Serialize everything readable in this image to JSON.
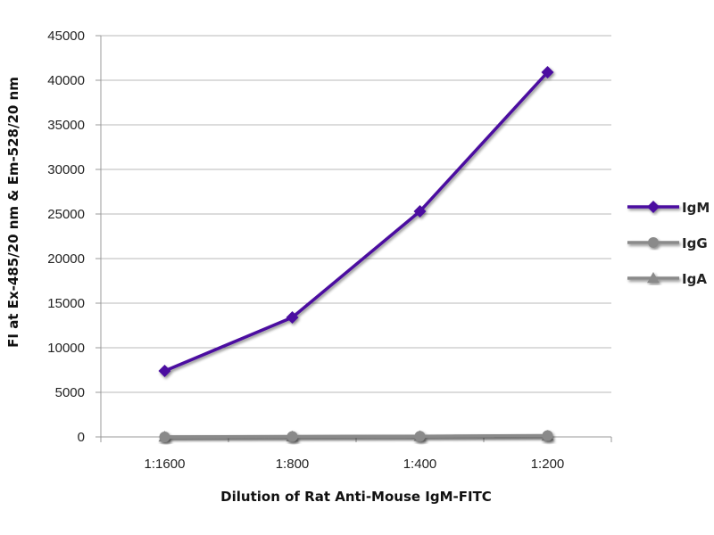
{
  "chart_data": {
    "type": "line",
    "title": "",
    "xlabel": "Dilution of Rat Anti-Mouse IgM-FITC",
    "ylabel": "FI at Ex-485/20 nm & Em-528/20 nm",
    "categories": [
      "1:1600",
      "1:800",
      "1:400",
      "1:200"
    ],
    "ylim": [
      0,
      45000
    ],
    "yticks": [
      0,
      5000,
      10000,
      15000,
      20000,
      25000,
      30000,
      35000,
      40000,
      45000
    ],
    "grid": true,
    "legend_position": "right",
    "series": [
      {
        "name": "IgM",
        "values": [
          7400,
          13400,
          25300,
          40900
        ],
        "color": "#4b0fa0",
        "marker": "diamond"
      },
      {
        "name": "IgG",
        "values": [
          0,
          50,
          80,
          150
        ],
        "color": "#8a8a8a",
        "marker": "circle"
      },
      {
        "name": "IgA",
        "values": [
          0,
          30,
          60,
          100
        ],
        "color": "#8a8a8a",
        "marker": "triangle"
      }
    ]
  }
}
